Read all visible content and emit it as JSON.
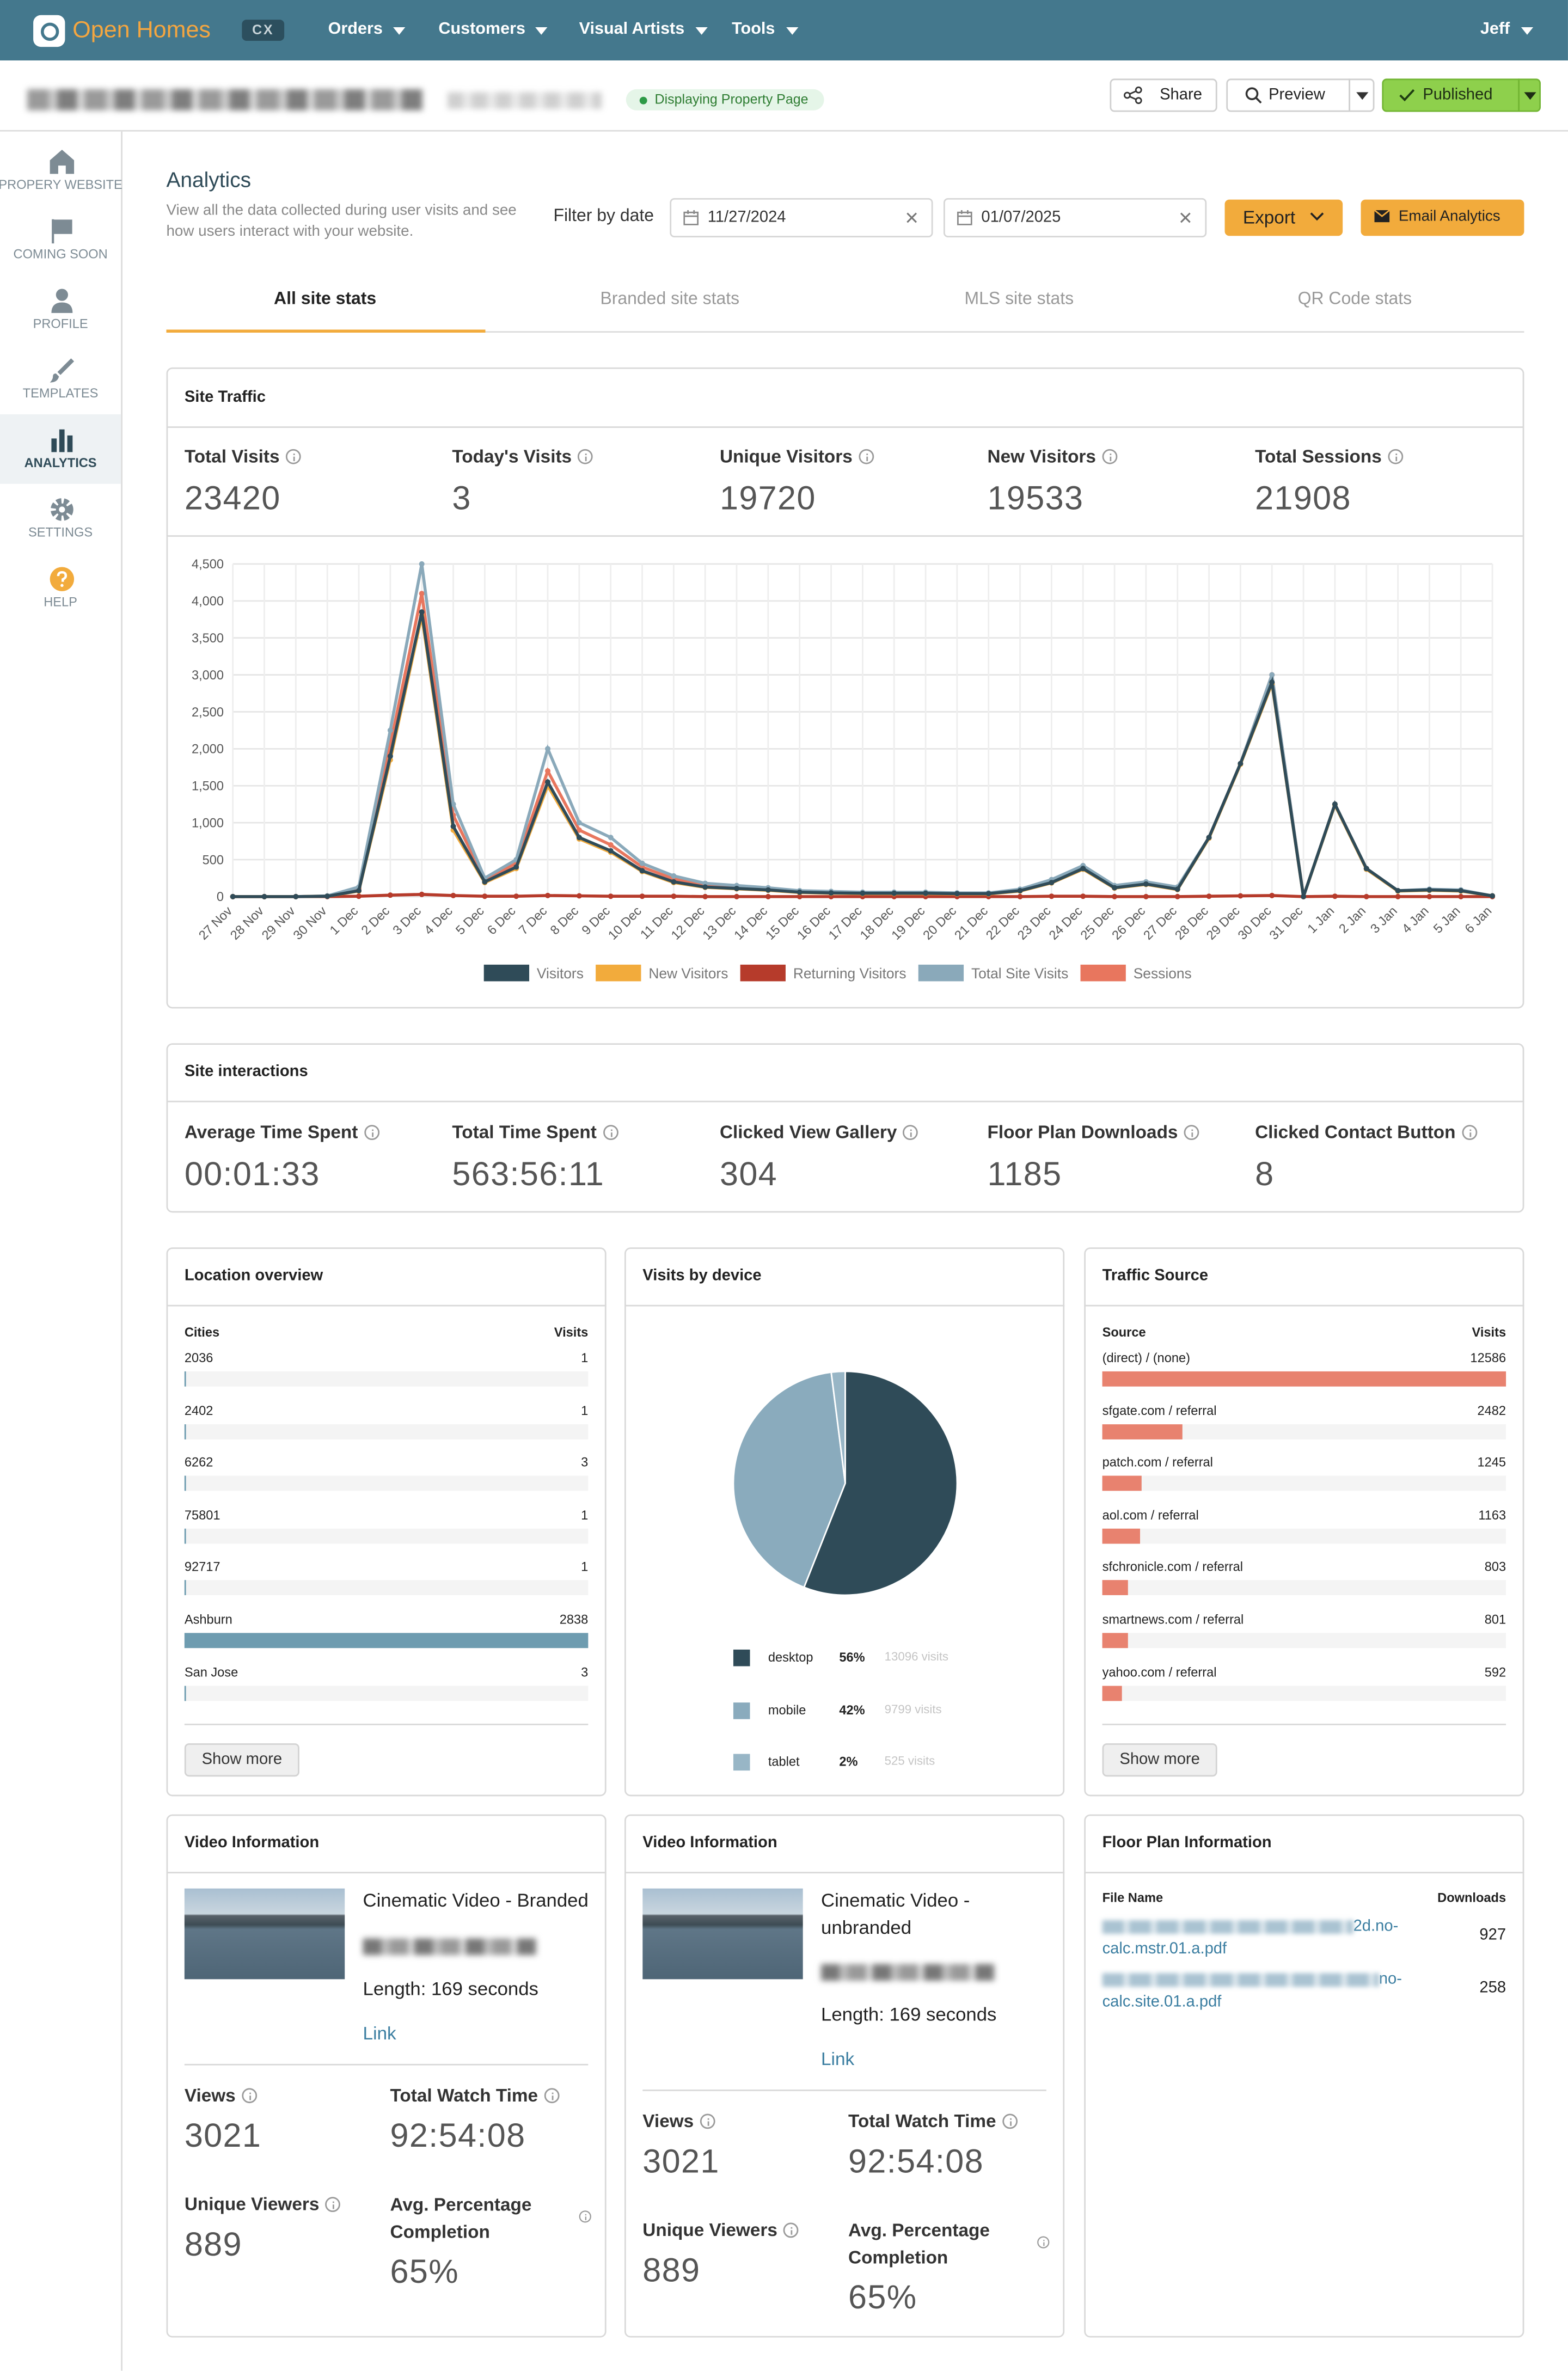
{
  "nav": {
    "brand": "Open Homes",
    "badge": "CX",
    "menu": [
      "Orders",
      "Customers",
      "Visual Artists",
      "Tools"
    ],
    "user": "Jeff"
  },
  "header": {
    "status": "Displaying Property Page",
    "buttons": [
      "Share",
      "Preview",
      "Published"
    ]
  },
  "sidebar": [
    "PROPERY WEBSITE",
    "COMING SOON",
    "PROFILE",
    "TEMPLATES",
    "ANALYTICS",
    "SETTINGS",
    "HELP"
  ],
  "analytics": {
    "title": "Analytics",
    "description": "View all the data collected during user visits and see how users interact with your website.",
    "filter_label": "Filter by date",
    "date_from": "11/27/2024",
    "date_to": "01/07/2025",
    "export": "Export",
    "email": "Email Analytics",
    "tabs": [
      "All site stats",
      "Branded site stats",
      "MLS site stats",
      "QR Code stats"
    ]
  },
  "site_traffic": {
    "title": "Site Traffic",
    "stats": [
      {
        "label": "Total Visits",
        "value": 23420
      },
      {
        "label": "Today's Visits",
        "value": 3
      },
      {
        "label": "Unique Visitors",
        "value": 19720
      },
      {
        "label": "New Visitors",
        "value": 19533
      },
      {
        "label": "Total Sessions",
        "value": 21908
      }
    ]
  },
  "chart_data": [
    {
      "type": "line",
      "categories": [
        "27 Nov",
        "28 Nov",
        "29 Nov",
        "30 Nov",
        "1 Dec",
        "2 Dec",
        "3 Dec",
        "4 Dec",
        "5 Dec",
        "6 Dec",
        "7 Dec",
        "8 Dec",
        "9 Dec",
        "10 Dec",
        "11 Dec",
        "12 Dec",
        "13 Dec",
        "14 Dec",
        "15 Dec",
        "16 Dec",
        "17 Dec",
        "18 Dec",
        "19 Dec",
        "20 Dec",
        "21 Dec",
        "22 Dec",
        "23 Dec",
        "24 Dec",
        "25 Dec",
        "26 Dec",
        "27 Dec",
        "28 Dec",
        "29 Dec",
        "30 Dec",
        "31 Dec",
        "1 Jan",
        "2 Jan",
        "3 Jan",
        "4 Jan",
        "5 Jan",
        "6 Jan"
      ],
      "series": [
        {
          "name": "Visitors",
          "color": "#2f4b58",
          "values": [
            0,
            0,
            0,
            5,
            80,
            1900,
            3850,
            950,
            200,
            400,
            1550,
            800,
            620,
            350,
            200,
            130,
            110,
            90,
            60,
            50,
            45,
            45,
            45,
            40,
            40,
            80,
            190,
            380,
            120,
            170,
            100,
            800,
            1800,
            2900,
            0,
            1250,
            380,
            80,
            90,
            80,
            10
          ]
        },
        {
          "name": "New Visitors",
          "color": "#f2ab3c",
          "values": [
            0,
            0,
            0,
            5,
            75,
            1850,
            3800,
            900,
            190,
            380,
            1500,
            780,
            600,
            340,
            190,
            125,
            105,
            85,
            55,
            45,
            40,
            40,
            40,
            35,
            35,
            75,
            185,
            370,
            115,
            165,
            95,
            790,
            1790,
            2880,
            0,
            1240,
            370,
            75,
            85,
            75,
            10
          ]
        },
        {
          "name": "Returning Visitors",
          "color": "#b63b2b",
          "values": [
            0,
            0,
            0,
            0,
            5,
            20,
            30,
            15,
            5,
            5,
            15,
            10,
            5,
            5,
            5,
            0,
            0,
            0,
            0,
            0,
            0,
            0,
            0,
            0,
            0,
            0,
            5,
            5,
            0,
            0,
            0,
            5,
            10,
            15,
            0,
            5,
            0,
            0,
            0,
            0,
            0
          ]
        },
        {
          "name": "Total Site Visits",
          "color": "#8aa9ba",
          "values": [
            0,
            0,
            0,
            10,
            130,
            2250,
            4500,
            1250,
            250,
            500,
            2000,
            1000,
            800,
            450,
            280,
            180,
            150,
            120,
            80,
            70,
            60,
            60,
            60,
            50,
            50,
            100,
            230,
            420,
            150,
            200,
            130,
            800,
            1800,
            3000,
            0,
            1250,
            380,
            80,
            100,
            90,
            10
          ]
        },
        {
          "name": "Sessions",
          "color": "#e8765e",
          "values": [
            0,
            0,
            0,
            8,
            110,
            2050,
            4100,
            1100,
            230,
            450,
            1700,
            900,
            700,
            400,
            240,
            150,
            130,
            100,
            70,
            60,
            50,
            50,
            50,
            45,
            45,
            90,
            210,
            400,
            140,
            185,
            115,
            800,
            1800,
            3000,
            0,
            1250,
            380,
            80,
            95,
            85,
            10
          ]
        }
      ],
      "ylim": [
        0,
        4500
      ],
      "yticks": [
        0,
        500,
        {
          "value": 1000,
          "label": "1,000"
        },
        {
          "value": 1500,
          "label": "1,500"
        },
        {
          "value": 2000,
          "label": "2,000"
        },
        {
          "value": 2500,
          "label": "2,500"
        },
        {
          "value": 3000,
          "label": "3,000"
        },
        {
          "value": 3500,
          "label": "3,500"
        },
        {
          "value": 4000,
          "label": "4,000"
        },
        {
          "value": 4500,
          "label": "4,500"
        }
      ],
      "grid": true
    },
    {
      "type": "pie",
      "title": "Visits by device",
      "categories": [
        "desktop",
        "mobile",
        "tablet"
      ],
      "values": [
        56,
        42,
        2
      ],
      "value_labels": [
        "56%",
        "42%",
        "2%"
      ],
      "visit_labels": [
        "13096 visits",
        "9799 visits",
        "525 visits"
      ],
      "colors": [
        "#2f4b58",
        "#8aabbd",
        "#98b6c6"
      ]
    }
  ],
  "site_interactions": {
    "title": "Site interactions",
    "stats": [
      {
        "label": "Average Time Spent",
        "value": "00:01:33"
      },
      {
        "label": "Total Time Spent",
        "value": "563:56:11"
      },
      {
        "label": "Clicked View Gallery",
        "value": 304
      },
      {
        "label": "Floor Plan Downloads",
        "value": 1185
      },
      {
        "label": "Clicked Contact Button",
        "value": 8
      }
    ]
  },
  "location": {
    "title": "Location overview",
    "columns": [
      "Cities",
      "Visits"
    ],
    "rows": [
      {
        "label": "2036",
        "value": 1
      },
      {
        "label": "2402",
        "value": 1
      },
      {
        "label": "6262",
        "value": 3
      },
      {
        "label": "75801",
        "value": 1
      },
      {
        "label": "92717",
        "value": 1
      },
      {
        "label": "Ashburn",
        "value": 2838
      },
      {
        "label": "San Jose",
        "value": 3
      }
    ],
    "button": "Show more"
  },
  "traffic_source": {
    "title": "Traffic Source",
    "columns": [
      "Source",
      "Visits"
    ],
    "rows": [
      {
        "label": "(direct) / (none)",
        "value": 12586
      },
      {
        "label": "sfgate.com / referral",
        "value": 2482
      },
      {
        "label": "patch.com / referral",
        "value": 1245
      },
      {
        "label": "aol.com / referral",
        "value": 1163
      },
      {
        "label": "sfchronicle.com / referral",
        "value": 803
      },
      {
        "label": "smartnews.com / referral",
        "value": 801
      },
      {
        "label": "yahoo.com / referral",
        "value": 592
      }
    ],
    "button": "Show more"
  },
  "videos": [
    {
      "title": "Video Information",
      "name": "Cinematic Video - Branded",
      "length": "Length: 169 seconds",
      "link": "Link",
      "stats": [
        {
          "label": "Views",
          "value": 3021
        },
        {
          "label": "Total Watch Time",
          "value": "92:54:08"
        },
        {
          "label": "Unique Viewers",
          "value": 889
        },
        {
          "label": "Avg. Percentage Completion",
          "value": "65%"
        }
      ]
    },
    {
      "title": "Video Information",
      "name": "Cinematic Video - unbranded",
      "length": "Length: 169 seconds",
      "link": "Link",
      "stats": [
        {
          "label": "Views",
          "value": 3021
        },
        {
          "label": "Total Watch Time",
          "value": "92:54:08"
        },
        {
          "label": "Unique Viewers",
          "value": 889
        },
        {
          "label": "Avg. Percentage Completion",
          "value": "65%"
        }
      ]
    }
  ],
  "floor_plan": {
    "title": "Floor Plan Information",
    "columns": [
      "File Name",
      "Downloads"
    ],
    "rows": [
      {
        "file": "2d.no-calc.mstr.01.a.pdf",
        "downloads": 927
      },
      {
        "file": "no-calc.site.01.a.pdf",
        "downloads": 258
      }
    ]
  }
}
